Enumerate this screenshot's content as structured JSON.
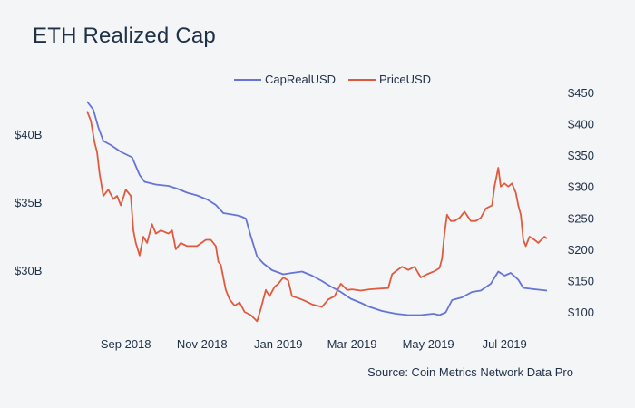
{
  "title": "ETH Realized Cap",
  "source": "Source: Coin Metrics Network Data Pro",
  "chart_data": {
    "type": "line",
    "legend_position": "top-center",
    "grid": false,
    "x_range": [
      "2018-08-01",
      "2019-08-15"
    ],
    "y_left": {
      "range": [
        26.5,
        43.0
      ],
      "ticks": [
        30,
        35,
        40
      ],
      "tick_labels": [
        "$30B",
        "$35B",
        "$40B"
      ],
      "unit": "USD billions"
    },
    "y_right": {
      "range": [
        90,
        450
      ],
      "ticks": [
        100,
        150,
        200,
        250,
        300,
        350,
        400,
        450
      ],
      "tick_labels": [
        "$100",
        "$150",
        "$200",
        "$250",
        "$300",
        "$350",
        "$400",
        "$450"
      ],
      "unit": "USD"
    },
    "x_ticks": [
      {
        "date": "2018-09-01",
        "label": "Sep 2018"
      },
      {
        "date": "2018-11-01",
        "label": "Nov 2018"
      },
      {
        "date": "2019-01-01",
        "label": "Jan 2019"
      },
      {
        "date": "2019-03-01",
        "label": "Mar 2019"
      },
      {
        "date": "2019-05-01",
        "label": "May 2019"
      },
      {
        "date": "2019-07-01",
        "label": "Jul 2019"
      }
    ],
    "series": [
      {
        "name": "CapRealUSD",
        "axis": "left",
        "color": "#6673d9",
        "points": [
          [
            "2018-08-01",
            42.4
          ],
          [
            "2018-08-06",
            41.8
          ],
          [
            "2018-08-10",
            40.5
          ],
          [
            "2018-08-14",
            39.5
          ],
          [
            "2018-08-20",
            39.2
          ],
          [
            "2018-08-28",
            38.7
          ],
          [
            "2018-09-06",
            38.3
          ],
          [
            "2018-09-12",
            37.0
          ],
          [
            "2018-09-16",
            36.5
          ],
          [
            "2018-09-25",
            36.3
          ],
          [
            "2018-10-05",
            36.2
          ],
          [
            "2018-10-12",
            36.0
          ],
          [
            "2018-10-20",
            35.7
          ],
          [
            "2018-10-28",
            35.5
          ],
          [
            "2018-11-05",
            35.2
          ],
          [
            "2018-11-12",
            34.8
          ],
          [
            "2018-11-18",
            34.2
          ],
          [
            "2018-11-25",
            34.1
          ],
          [
            "2018-12-01",
            34.0
          ],
          [
            "2018-12-06",
            33.8
          ],
          [
            "2018-12-10",
            32.5
          ],
          [
            "2018-12-15",
            31.0
          ],
          [
            "2018-12-20",
            30.5
          ],
          [
            "2018-12-27",
            30.0
          ],
          [
            "2019-01-05",
            29.7
          ],
          [
            "2019-01-12",
            29.8
          ],
          [
            "2019-01-20",
            29.9
          ],
          [
            "2019-01-28",
            29.6
          ],
          [
            "2019-02-05",
            29.2
          ],
          [
            "2019-02-12",
            28.8
          ],
          [
            "2019-02-20",
            28.4
          ],
          [
            "2019-02-28",
            27.9
          ],
          [
            "2019-03-08",
            27.6
          ],
          [
            "2019-03-15",
            27.3
          ],
          [
            "2019-03-25",
            27.0
          ],
          [
            "2019-04-05",
            26.8
          ],
          [
            "2019-04-15",
            26.7
          ],
          [
            "2019-04-25",
            26.7
          ],
          [
            "2019-05-05",
            26.8
          ],
          [
            "2019-05-10",
            26.7
          ],
          [
            "2019-05-15",
            26.9
          ],
          [
            "2019-05-20",
            27.8
          ],
          [
            "2019-05-28",
            28.0
          ],
          [
            "2019-06-05",
            28.4
          ],
          [
            "2019-06-12",
            28.5
          ],
          [
            "2019-06-20",
            29.0
          ],
          [
            "2019-06-26",
            29.9
          ],
          [
            "2019-07-01",
            29.6
          ],
          [
            "2019-07-06",
            29.8
          ],
          [
            "2019-07-12",
            29.3
          ],
          [
            "2019-07-16",
            28.7
          ],
          [
            "2019-07-25",
            28.6
          ],
          [
            "2019-08-04",
            28.5
          ]
        ]
      },
      {
        "name": "PriceUSD",
        "axis": "right",
        "color": "#e05a3f",
        "points": [
          [
            "2018-08-01",
            420
          ],
          [
            "2018-08-04",
            405
          ],
          [
            "2018-08-07",
            370
          ],
          [
            "2018-08-09",
            355
          ],
          [
            "2018-08-11",
            320
          ],
          [
            "2018-08-14",
            285
          ],
          [
            "2018-08-18",
            295
          ],
          [
            "2018-08-22",
            280
          ],
          [
            "2018-08-25",
            285
          ],
          [
            "2018-08-28",
            270
          ],
          [
            "2018-09-01",
            295
          ],
          [
            "2018-09-05",
            285
          ],
          [
            "2018-09-07",
            230
          ],
          [
            "2018-09-09",
            210
          ],
          [
            "2018-09-12",
            190
          ],
          [
            "2018-09-15",
            220
          ],
          [
            "2018-09-18",
            210
          ],
          [
            "2018-09-22",
            240
          ],
          [
            "2018-09-25",
            225
          ],
          [
            "2018-09-29",
            230
          ],
          [
            "2018-10-05",
            225
          ],
          [
            "2018-10-08",
            230
          ],
          [
            "2018-10-11",
            200
          ],
          [
            "2018-10-15",
            210
          ],
          [
            "2018-10-20",
            205
          ],
          [
            "2018-10-28",
            205
          ],
          [
            "2018-11-04",
            215
          ],
          [
            "2018-11-08",
            215
          ],
          [
            "2018-11-12",
            205
          ],
          [
            "2018-11-14",
            180
          ],
          [
            "2018-11-16",
            175
          ],
          [
            "2018-11-20",
            135
          ],
          [
            "2018-11-23",
            120
          ],
          [
            "2018-11-27",
            110
          ],
          [
            "2018-12-01",
            115
          ],
          [
            "2018-12-05",
            100
          ],
          [
            "2018-12-10",
            95
          ],
          [
            "2018-12-15",
            85
          ],
          [
            "2018-12-18",
            105
          ],
          [
            "2018-12-22",
            135
          ],
          [
            "2018-12-25",
            125
          ],
          [
            "2018-12-29",
            140
          ],
          [
            "2019-01-01",
            145
          ],
          [
            "2019-01-05",
            155
          ],
          [
            "2019-01-09",
            150
          ],
          [
            "2019-01-12",
            125
          ],
          [
            "2019-01-17",
            122
          ],
          [
            "2019-01-22",
            118
          ],
          [
            "2019-01-28",
            112
          ],
          [
            "2019-02-05",
            108
          ],
          [
            "2019-02-10",
            120
          ],
          [
            "2019-02-15",
            125
          ],
          [
            "2019-02-20",
            145
          ],
          [
            "2019-02-25",
            135
          ],
          [
            "2019-03-01",
            136
          ],
          [
            "2019-03-08",
            134
          ],
          [
            "2019-03-15",
            136
          ],
          [
            "2019-03-22",
            137
          ],
          [
            "2019-03-30",
            138
          ],
          [
            "2019-04-02",
            160
          ],
          [
            "2019-04-05",
            165
          ],
          [
            "2019-04-10",
            172
          ],
          [
            "2019-04-15",
            167
          ],
          [
            "2019-04-20",
            172
          ],
          [
            "2019-04-25",
            155
          ],
          [
            "2019-04-30",
            160
          ],
          [
            "2019-05-06",
            165
          ],
          [
            "2019-05-10",
            170
          ],
          [
            "2019-05-12",
            185
          ],
          [
            "2019-05-14",
            225
          ],
          [
            "2019-05-16",
            255
          ],
          [
            "2019-05-19",
            245
          ],
          [
            "2019-05-22",
            245
          ],
          [
            "2019-05-26",
            250
          ],
          [
            "2019-05-30",
            260
          ],
          [
            "2019-06-04",
            245
          ],
          [
            "2019-06-08",
            245
          ],
          [
            "2019-06-12",
            250
          ],
          [
            "2019-06-16",
            265
          ],
          [
            "2019-06-21",
            270
          ],
          [
            "2019-06-23",
            300
          ],
          [
            "2019-06-26",
            330
          ],
          [
            "2019-06-28",
            300
          ],
          [
            "2019-07-01",
            305
          ],
          [
            "2019-07-04",
            300
          ],
          [
            "2019-07-07",
            305
          ],
          [
            "2019-07-10",
            290
          ],
          [
            "2019-07-12",
            270
          ],
          [
            "2019-07-14",
            255
          ],
          [
            "2019-07-16",
            215
          ],
          [
            "2019-07-18",
            205
          ],
          [
            "2019-07-21",
            220
          ],
          [
            "2019-07-25",
            215
          ],
          [
            "2019-07-28",
            210
          ],
          [
            "2019-08-02",
            220
          ],
          [
            "2019-08-04",
            217
          ]
        ]
      }
    ]
  }
}
